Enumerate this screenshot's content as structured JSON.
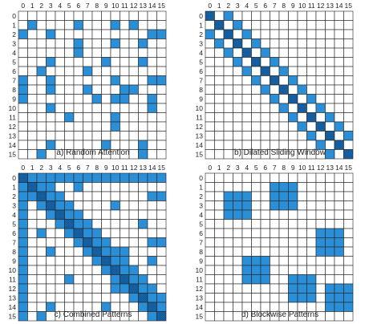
{
  "colors": {
    "filled": "#2b8fd8",
    "diagonal": "#1b6fb6",
    "hatch": "#0f4f8a",
    "grid": "#222222",
    "empty": "#ffffff"
  },
  "grid_size": 16,
  "panels": [
    {
      "caption": "a) Random Attention",
      "cells": [
        [
          1,
          1
        ],
        [
          1,
          6
        ],
        [
          1,
          10
        ],
        [
          1,
          12
        ],
        [
          2,
          0
        ],
        [
          2,
          3
        ],
        [
          2,
          14
        ],
        [
          2,
          15
        ],
        [
          3,
          6
        ],
        [
          3,
          10
        ],
        [
          3,
          13
        ],
        [
          4,
          6
        ],
        [
          5,
          3
        ],
        [
          5,
          9
        ],
        [
          5,
          13
        ],
        [
          6,
          2
        ],
        [
          6,
          7
        ],
        [
          7,
          0
        ],
        [
          7,
          3
        ],
        [
          7,
          10
        ],
        [
          7,
          14
        ],
        [
          7,
          15
        ],
        [
          8,
          0
        ],
        [
          8,
          3
        ],
        [
          8,
          7
        ],
        [
          8,
          11
        ],
        [
          8,
          12
        ],
        [
          9,
          0
        ],
        [
          9,
          8
        ],
        [
          9,
          10
        ],
        [
          9,
          11
        ],
        [
          9,
          14
        ],
        [
          10,
          3
        ],
        [
          10,
          14
        ],
        [
          11,
          5
        ],
        [
          11,
          10
        ],
        [
          12,
          10
        ],
        [
          14,
          3
        ],
        [
          14,
          9
        ],
        [
          14,
          13
        ],
        [
          15,
          2
        ],
        [
          15,
          13
        ]
      ],
      "diagonal_hatch": false
    },
    {
      "caption": "b) Dilated Sliding Window",
      "cells": [
        [
          0,
          0
        ],
        [
          0,
          2
        ],
        [
          1,
          1
        ],
        [
          1,
          3
        ],
        [
          2,
          0
        ],
        [
          2,
          2
        ],
        [
          2,
          4
        ],
        [
          3,
          1
        ],
        [
          3,
          3
        ],
        [
          3,
          5
        ],
        [
          4,
          2
        ],
        [
          4,
          4
        ],
        [
          4,
          6
        ],
        [
          5,
          3
        ],
        [
          5,
          5
        ],
        [
          5,
          7
        ],
        [
          6,
          4
        ],
        [
          6,
          6
        ],
        [
          6,
          8
        ],
        [
          7,
          5
        ],
        [
          7,
          7
        ],
        [
          7,
          9
        ],
        [
          8,
          6
        ],
        [
          8,
          8
        ],
        [
          8,
          10
        ],
        [
          9,
          7
        ],
        [
          9,
          9
        ],
        [
          9,
          11
        ],
        [
          10,
          8
        ],
        [
          10,
          10
        ],
        [
          10,
          12
        ],
        [
          11,
          9
        ],
        [
          11,
          11
        ],
        [
          11,
          13
        ],
        [
          12,
          10
        ],
        [
          12,
          12
        ],
        [
          12,
          14
        ],
        [
          13,
          11
        ],
        [
          13,
          13
        ],
        [
          13,
          15
        ],
        [
          14,
          12
        ],
        [
          14,
          14
        ],
        [
          15,
          13
        ],
        [
          15,
          15
        ]
      ],
      "diagonal_hatch": true
    },
    {
      "caption": "c) Combined Patterns",
      "cells": [
        [
          0,
          0
        ],
        [
          0,
          1
        ],
        [
          0,
          2
        ],
        [
          0,
          3
        ],
        [
          0,
          4
        ],
        [
          0,
          5
        ],
        [
          0,
          6
        ],
        [
          0,
          7
        ],
        [
          0,
          8
        ],
        [
          0,
          9
        ],
        [
          0,
          10
        ],
        [
          0,
          11
        ],
        [
          0,
          12
        ],
        [
          0,
          13
        ],
        [
          0,
          14
        ],
        [
          0,
          15
        ],
        [
          1,
          0
        ],
        [
          2,
          0
        ],
        [
          3,
          0
        ],
        [
          4,
          0
        ],
        [
          5,
          0
        ],
        [
          6,
          0
        ],
        [
          7,
          0
        ],
        [
          8,
          0
        ],
        [
          9,
          0
        ],
        [
          10,
          0
        ],
        [
          11,
          0
        ],
        [
          12,
          0
        ],
        [
          13,
          0
        ],
        [
          14,
          0
        ],
        [
          15,
          0
        ],
        [
          1,
          1
        ],
        [
          1,
          2
        ],
        [
          1,
          3
        ],
        [
          2,
          1
        ],
        [
          2,
          2
        ],
        [
          2,
          3
        ],
        [
          2,
          4
        ],
        [
          3,
          2
        ],
        [
          3,
          3
        ],
        [
          3,
          4
        ],
        [
          3,
          5
        ],
        [
          4,
          3
        ],
        [
          4,
          4
        ],
        [
          4,
          5
        ],
        [
          4,
          6
        ],
        [
          5,
          4
        ],
        [
          5,
          5
        ],
        [
          5,
          6
        ],
        [
          5,
          7
        ],
        [
          6,
          5
        ],
        [
          6,
          6
        ],
        [
          6,
          7
        ],
        [
          6,
          8
        ],
        [
          7,
          6
        ],
        [
          7,
          7
        ],
        [
          7,
          8
        ],
        [
          7,
          9
        ],
        [
          8,
          7
        ],
        [
          8,
          8
        ],
        [
          8,
          9
        ],
        [
          8,
          10
        ],
        [
          9,
          8
        ],
        [
          9,
          9
        ],
        [
          9,
          10
        ],
        [
          9,
          11
        ],
        [
          10,
          9
        ],
        [
          10,
          10
        ],
        [
          10,
          11
        ],
        [
          10,
          12
        ],
        [
          11,
          10
        ],
        [
          11,
          11
        ],
        [
          11,
          12
        ],
        [
          11,
          13
        ],
        [
          12,
          11
        ],
        [
          12,
          12
        ],
        [
          12,
          13
        ],
        [
          12,
          14
        ],
        [
          13,
          12
        ],
        [
          13,
          13
        ],
        [
          13,
          14
        ],
        [
          13,
          15
        ],
        [
          14,
          13
        ],
        [
          14,
          14
        ],
        [
          14,
          15
        ],
        [
          15,
          14
        ],
        [
          15,
          15
        ],
        [
          1,
          6
        ],
        [
          2,
          14
        ],
        [
          2,
          15
        ],
        [
          3,
          10
        ],
        [
          5,
          13
        ],
        [
          6,
          2
        ],
        [
          7,
          14
        ],
        [
          7,
          15
        ],
        [
          8,
          3
        ],
        [
          8,
          11
        ],
        [
          9,
          14
        ],
        [
          11,
          5
        ],
        [
          12,
          10
        ],
        [
          14,
          3
        ],
        [
          14,
          9
        ],
        [
          15,
          2
        ]
      ],
      "diagonal_hatch": true
    },
    {
      "caption": "d) Blockwise Patterns",
      "cells": [
        [
          1,
          7
        ],
        [
          1,
          8
        ],
        [
          1,
          9
        ],
        [
          2,
          2
        ],
        [
          2,
          3
        ],
        [
          2,
          4
        ],
        [
          2,
          7
        ],
        [
          2,
          8
        ],
        [
          2,
          9
        ],
        [
          3,
          2
        ],
        [
          3,
          3
        ],
        [
          3,
          4
        ],
        [
          3,
          7
        ],
        [
          3,
          8
        ],
        [
          3,
          9
        ],
        [
          4,
          2
        ],
        [
          4,
          3
        ],
        [
          4,
          4
        ],
        [
          6,
          12
        ],
        [
          6,
          13
        ],
        [
          6,
          14
        ],
        [
          7,
          12
        ],
        [
          7,
          13
        ],
        [
          7,
          14
        ],
        [
          8,
          12
        ],
        [
          8,
          13
        ],
        [
          8,
          14
        ],
        [
          9,
          4
        ],
        [
          9,
          5
        ],
        [
          9,
          6
        ],
        [
          10,
          4
        ],
        [
          10,
          5
        ],
        [
          10,
          6
        ],
        [
          11,
          4
        ],
        [
          11,
          5
        ],
        [
          11,
          6
        ],
        [
          11,
          9
        ],
        [
          11,
          10
        ],
        [
          11,
          11
        ],
        [
          12,
          9
        ],
        [
          12,
          10
        ],
        [
          12,
          11
        ],
        [
          12,
          13
        ],
        [
          12,
          14
        ],
        [
          12,
          15
        ],
        [
          13,
          9
        ],
        [
          13,
          10
        ],
        [
          13,
          11
        ],
        [
          13,
          13
        ],
        [
          13,
          14
        ],
        [
          13,
          15
        ],
        [
          14,
          13
        ],
        [
          14,
          14
        ],
        [
          14,
          15
        ]
      ],
      "diagonal_hatch": false
    }
  ]
}
